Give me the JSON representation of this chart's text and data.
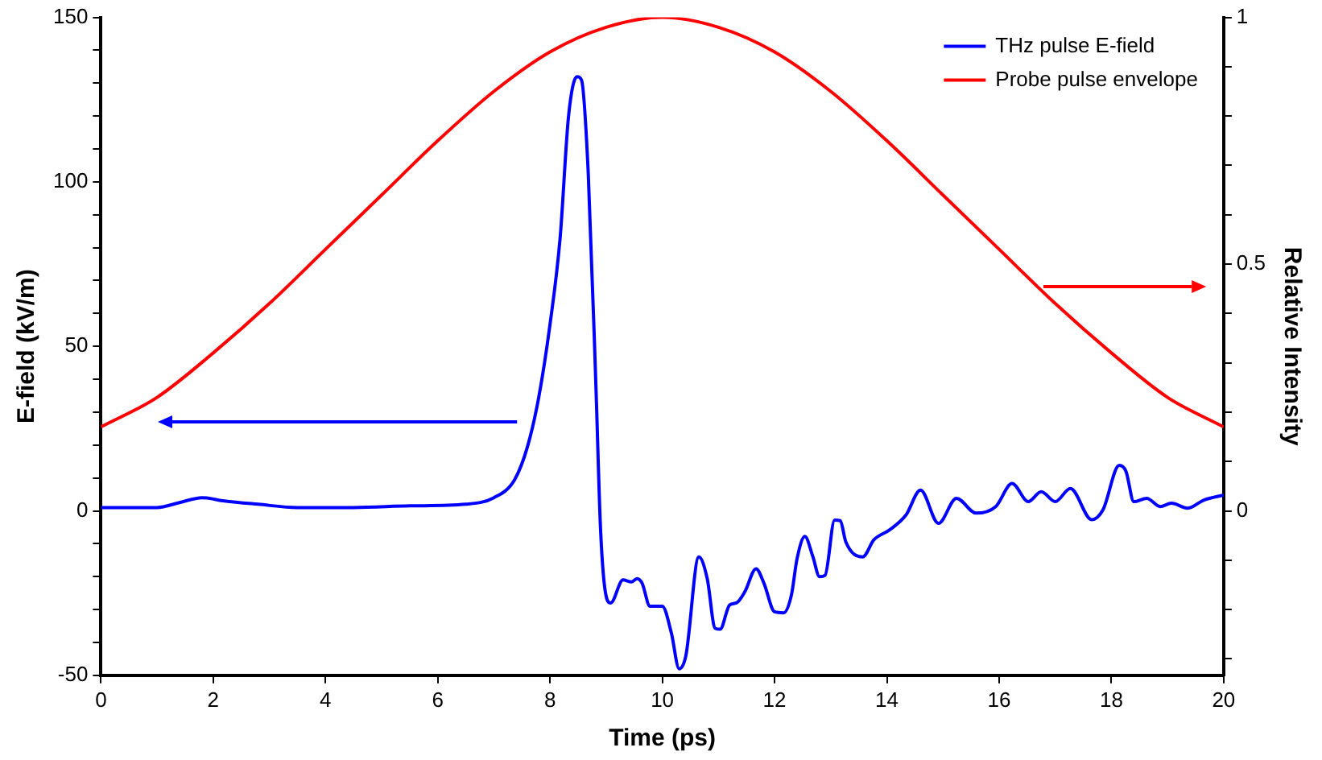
{
  "chart_data": {
    "type": "line",
    "xlabel": "Time (ps)",
    "ylabel": "E-field (kV/m)",
    "y2label": "Relative Intensity",
    "series": [
      {
        "name": "THz pulse E-field",
        "color": "#0000ff",
        "x": [
          0,
          0.5,
          1,
          1.4,
          1.8,
          2.2,
          2.8,
          3.5,
          4.5,
          5.5,
          6.5,
          7.0,
          7.37,
          7.6,
          7.8,
          8.0,
          8.18,
          8.33,
          8.48,
          8.56,
          8.68,
          8.82,
          8.9,
          9.0,
          9.08,
          9.3,
          9.45,
          9.55,
          9.64,
          9.78,
          10.0,
          10.16,
          10.3,
          10.42,
          10.65,
          10.8,
          10.94,
          11.03,
          11.2,
          11.32,
          11.47,
          11.67,
          11.81,
          12.0,
          12.16,
          12.3,
          12.4,
          12.54,
          12.68,
          12.8,
          12.9,
          13.07,
          13.17,
          13.27,
          13.57,
          13.77,
          14.05,
          14.34,
          14.6,
          14.92,
          15.24,
          15.59,
          15.94,
          16.23,
          16.52,
          16.75,
          17.0,
          17.27,
          17.65,
          17.85,
          18.14,
          18.26,
          18.4,
          18.63,
          18.87,
          19.07,
          19.36,
          19.65,
          20
        ],
        "values": [
          1,
          1,
          1,
          2.5,
          4,
          3,
          2,
          1,
          1,
          1.5,
          2,
          4,
          9.5,
          19.6,
          34.6,
          56.7,
          83,
          120,
          132,
          131,
          103,
          36.6,
          -5.6,
          -26,
          -28,
          -21,
          -21.6,
          -20.6,
          -22,
          -29,
          -29,
          -37,
          -48,
          -44,
          -14,
          -20.6,
          -35.7,
          -36,
          -28.6,
          -28,
          -24.6,
          -17.6,
          -22,
          -30.7,
          -31,
          -25.6,
          -14.6,
          -7.8,
          -13.8,
          -20,
          -19.6,
          -2.8,
          -3,
          -9.5,
          -14,
          -8.8,
          -5.8,
          -1.3,
          6.3,
          -3.8,
          3.8,
          -0.7,
          1.3,
          8.3,
          2.8,
          5.8,
          2.8,
          6.8,
          -2.7,
          0.3,
          13.8,
          12,
          2.8,
          3.8,
          1.3,
          2.3,
          0.8,
          3.3,
          4.8
        ]
      },
      {
        "name": "Probe pulse envelope",
        "color": "#ff0000",
        "axis": "y2",
        "x": [
          0,
          1,
          2,
          3,
          4,
          5,
          6,
          7,
          8,
          9,
          10,
          11,
          12,
          13,
          14,
          15,
          16,
          17,
          18,
          19,
          20
        ],
        "values": [
          0.17,
          0.23,
          0.32,
          0.42,
          0.53,
          0.64,
          0.75,
          0.85,
          0.93,
          0.98,
          1,
          0.98,
          0.93,
          0.85,
          0.75,
          0.64,
          0.53,
          0.42,
          0.32,
          0.23,
          0.17
        ]
      }
    ],
    "xlim": [
      0,
      20
    ],
    "xticks": [
      0,
      2,
      4,
      6,
      8,
      10,
      12,
      14,
      16,
      18,
      20
    ],
    "ylim": [
      -50,
      150
    ],
    "yticks": [
      -50,
      {
        "value": -40,
        "label": null
      },
      {
        "value": -30,
        "label": null
      },
      {
        "value": -20,
        "label": null
      },
      {
        "value": -10,
        "label": null
      },
      0,
      {
        "value": 10,
        "label": null
      },
      {
        "value": 20,
        "label": null
      },
      {
        "value": 30,
        "label": null
      },
      {
        "value": 40,
        "label": null
      },
      50,
      {
        "value": 60,
        "label": null
      },
      {
        "value": 70,
        "label": null
      },
      {
        "value": 80,
        "label": null
      },
      {
        "value": 90,
        "label": null
      },
      100,
      {
        "value": 110,
        "label": null
      },
      {
        "value": 120,
        "label": null
      },
      {
        "value": 130,
        "label": null
      },
      {
        "value": 140,
        "label": null
      },
      150
    ],
    "y2lim": [
      -0.3333,
      1
    ],
    "y2ticks": [
      {
        "value": -0.3,
        "label": null
      },
      {
        "value": -0.2,
        "label": null
      },
      {
        "value": -0.1,
        "label": null
      },
      0,
      {
        "value": 0.1,
        "label": null
      },
      {
        "value": 0.2,
        "label": null
      },
      {
        "value": 0.3,
        "label": null
      },
      {
        "value": 0.4,
        "label": null
      },
      0.5,
      {
        "value": 0.6,
        "label": null
      },
      {
        "value": 0.7,
        "label": null
      },
      {
        "value": 0.8,
        "label": null
      },
      {
        "value": 0.9,
        "label": null
      },
      1
    ],
    "grid": false,
    "legend": "top right",
    "marker": "none",
    "line_style": "solid"
  }
}
